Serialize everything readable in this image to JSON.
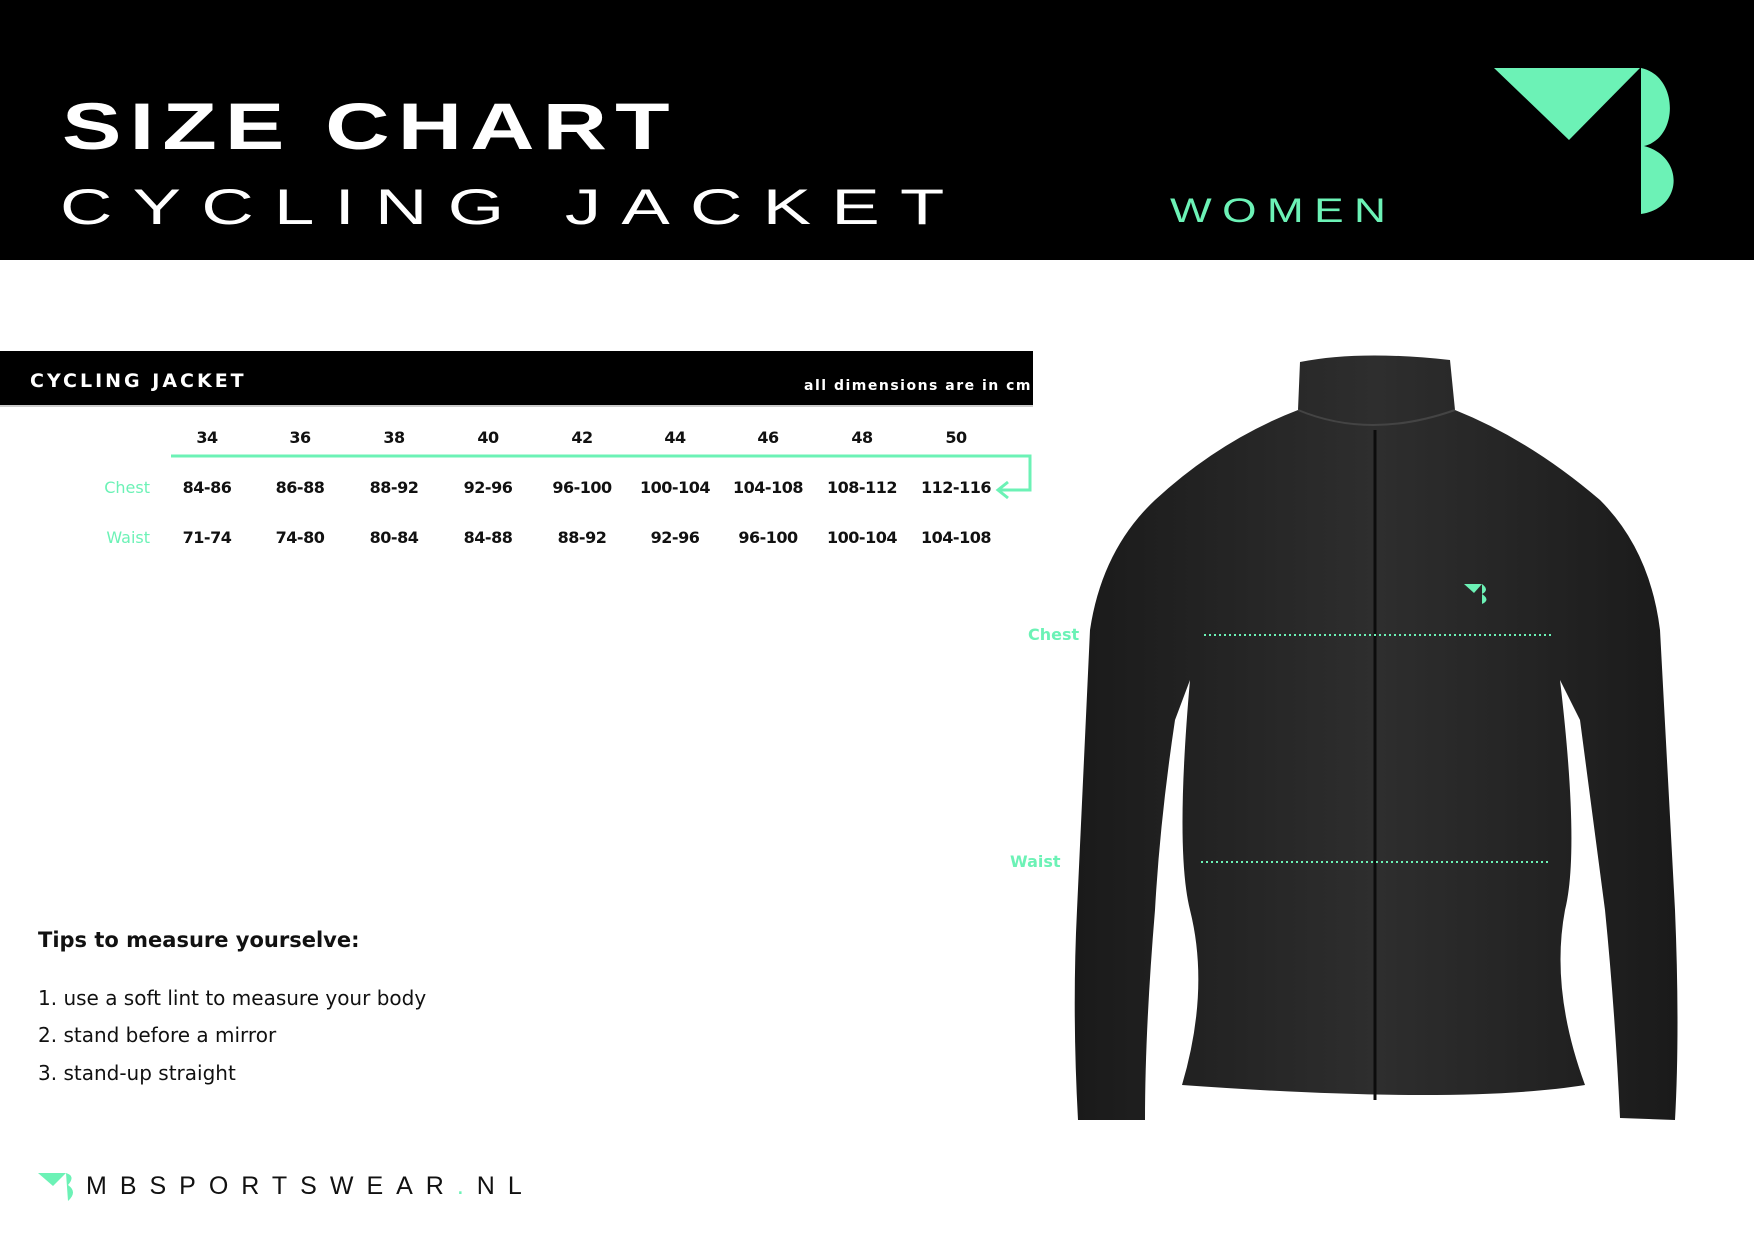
{
  "header": {
    "title": "SIZE CHART",
    "subtitle": "CYCLING JACKET",
    "gender": "WOMEN",
    "logo": "MB logo"
  },
  "colors": {
    "accent": "#6cf2b6",
    "dark": "#000000"
  },
  "table": {
    "title": "CYCLING JACKET",
    "note": "all dimensions are in cm",
    "sizes": [
      "34",
      "36",
      "38",
      "40",
      "42",
      "44",
      "46",
      "48",
      "50"
    ],
    "rows": [
      {
        "label": "Chest",
        "values": [
          "84-86",
          "86-88",
          "88-92",
          "92-96",
          "96-100",
          "100-104",
          "104-108",
          "108-112",
          "112-116"
        ]
      },
      {
        "label": "Waist",
        "values": [
          "71-74",
          "74-80",
          "80-84",
          "84-88",
          "88-92",
          "92-96",
          "96-100",
          "100-104",
          "104-108"
        ]
      }
    ]
  },
  "diagram": {
    "chest_label": "Chest",
    "waist_label": "Waist"
  },
  "tips": {
    "heading": "Tips to measure yourselve:",
    "items": [
      "1.  use a soft lint to measure your body",
      "2. stand before a mirror",
      "3. stand-up straight"
    ]
  },
  "footer": {
    "site_main": "MBSPORTSWEAR",
    "site_dot": ".",
    "site_tld": "NL"
  }
}
